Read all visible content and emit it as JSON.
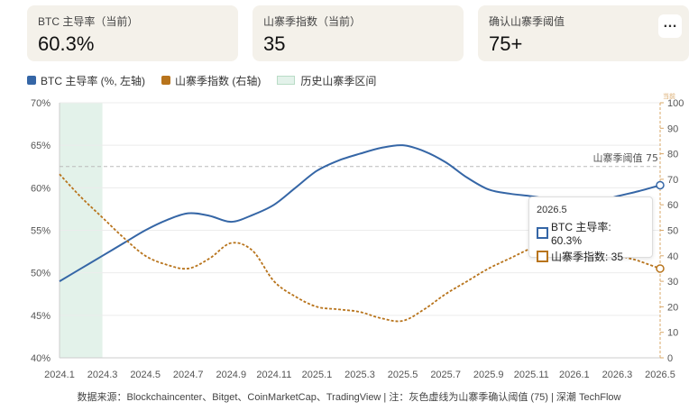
{
  "cards": [
    {
      "label": "BTC 主导率（当前）",
      "value": "60.3%"
    },
    {
      "label": "山寨季指数（当前）",
      "value": "35"
    },
    {
      "label": "确认山寨季阈值",
      "value": "75+"
    }
  ],
  "more_icon": "…",
  "legend": {
    "btc": "BTC 主导率 (%, 左轴)",
    "alt": "山寨季指数 (右轴)",
    "band": "历史山寨季区间"
  },
  "colors": {
    "btc": "#3566a6",
    "alt": "#b8741c",
    "band": "#e3f2ea",
    "threshold": "#bbbbbb"
  },
  "threshold_label": "山寨季阈值 75",
  "right_axis_top_note": "当前",
  "tooltip": {
    "title": "2026.5",
    "btc": "BTC 主导率: 60.3%",
    "alt": "山寨季指数: 35"
  },
  "footer": "数据来源：Blockchaincenter、Bitget、CoinMarketCap、TradingView | 注：灰色虚线为山寨季确认阈值 (75) | 深潮 TechFlow",
  "chart_data": {
    "type": "line",
    "x": [
      "2024.1",
      "2024.2",
      "2024.3",
      "2024.4",
      "2024.5",
      "2024.6",
      "2024.7",
      "2024.8",
      "2024.9",
      "2024.10",
      "2024.11",
      "2024.12",
      "2025.1",
      "2025.2",
      "2025.3",
      "2025.4",
      "2025.5",
      "2025.6",
      "2025.7",
      "2025.8",
      "2025.9",
      "2025.10",
      "2025.11",
      "2025.12",
      "2026.1",
      "2026.2",
      "2026.3",
      "2026.4",
      "2026.5"
    ],
    "x_tick_labels": [
      "2024.1",
      "2024.3",
      "2024.5",
      "2024.7",
      "2024.9",
      "2024.11",
      "2025.1",
      "2025.3",
      "2025.5",
      "2025.7",
      "2025.9",
      "2025.11",
      "2026.1",
      "2026.3",
      "2026.5"
    ],
    "series": [
      {
        "name": "BTC 主导率 (%, 左轴)",
        "axis": "left",
        "style": "solid",
        "values": [
          49,
          50.5,
          52,
          53.5,
          55,
          56.2,
          57,
          56.7,
          56,
          56.8,
          58,
          60,
          62,
          63.2,
          64,
          64.7,
          65,
          64.3,
          63,
          61.2,
          59.8,
          59.3,
          59,
          58.6,
          58.1,
          58.3,
          59,
          59.6,
          60.3
        ]
      },
      {
        "name": "山寨季指数 (右轴)",
        "axis": "right",
        "style": "dashed",
        "values": [
          72,
          63,
          55,
          47,
          40,
          36.5,
          35,
          39,
          45,
          42,
          30,
          24,
          20,
          19,
          18,
          15.5,
          14.5,
          19,
          25,
          30,
          35,
          39,
          43,
          46,
          48,
          49.5,
          41,
          38,
          35
        ]
      }
    ],
    "left_axis": {
      "ylim": [
        40,
        70
      ],
      "ticks": [
        40,
        45,
        50,
        55,
        60,
        65,
        70
      ],
      "unit": "%"
    },
    "right_axis": {
      "ylim": [
        0,
        100
      ],
      "ticks": [
        0,
        10,
        20,
        30,
        40,
        50,
        60,
        70,
        80,
        90,
        100
      ]
    },
    "threshold": 75,
    "highlight_band": {
      "from": "2024.1",
      "to": "2024.3"
    },
    "grid": true
  }
}
